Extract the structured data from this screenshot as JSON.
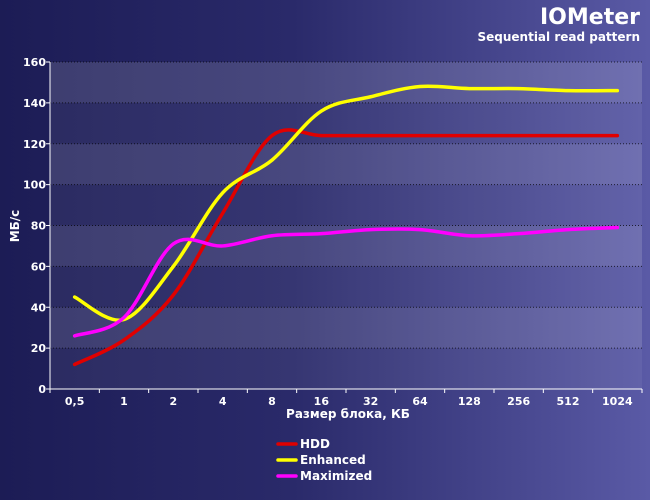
{
  "chart_data": {
    "type": "line",
    "title": "IOMeter",
    "subtitle": "Sequential read pattern",
    "xlabel": "Размер блока, КБ",
    "ylabel": "МБ/с",
    "categories": [
      "0,5",
      "1",
      "2",
      "4",
      "8",
      "16",
      "32",
      "64",
      "128",
      "256",
      "512",
      "1024"
    ],
    "ylim": [
      0,
      160
    ],
    "yticks": [
      0,
      20,
      40,
      60,
      80,
      100,
      120,
      140,
      160
    ],
    "grid": true,
    "legend_position": "bottom-center",
    "series": [
      {
        "name": "HDD",
        "color": "#e00000",
        "values": [
          12,
          24,
          46,
          86,
          124,
          124,
          124,
          124,
          124,
          124,
          124,
          124
        ]
      },
      {
        "name": "Enhanced",
        "color": "#ffff00",
        "values": [
          45,
          34,
          60,
          96,
          112,
          136,
          143,
          148,
          147,
          147,
          146,
          146
        ]
      },
      {
        "name": "Maximized",
        "color": "#ff00ff",
        "values": [
          26,
          35,
          71,
          70,
          75,
          76,
          78,
          78,
          75,
          76,
          78,
          79
        ]
      }
    ]
  }
}
